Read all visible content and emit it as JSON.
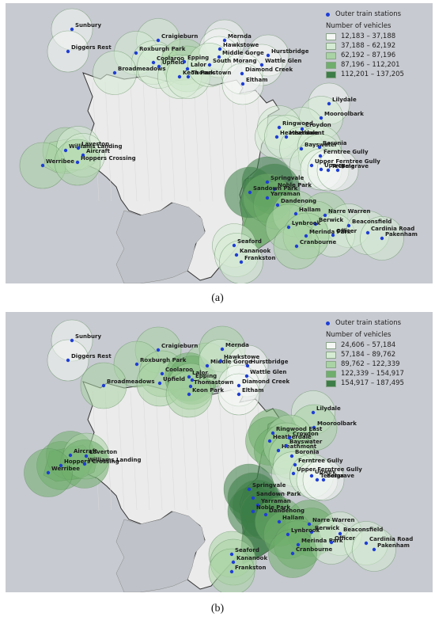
{
  "captions": {
    "a": "(a)",
    "b": "(b)"
  },
  "legend": {
    "stations_label": "Outer train stations",
    "title": "Number of vehicles",
    "station_color": "#1f3ed6"
  },
  "panels": [
    {
      "id": "a",
      "classes": [
        {
          "label": "12,183 – 37,188",
          "color": "#f4f7f4"
        },
        {
          "label": "37,188 – 62,192",
          "color": "#d6ebd3"
        },
        {
          "label": "62,192 – 87,196",
          "color": "#a9d3a4"
        },
        {
          "label": "87,196 – 112,201",
          "color": "#6fae6c"
        },
        {
          "label": "112,201 – 137,205",
          "color": "#3d7d47"
        }
      ]
    },
    {
      "id": "b",
      "classes": [
        {
          "label": "24,606 – 57,184",
          "color": "#f4f7f4"
        },
        {
          "label": "57,184 – 89,762",
          "color": "#d6ebd3"
        },
        {
          "label": "89,762 – 122,339",
          "color": "#a9d3a4"
        },
        {
          "label": "122,339 – 154,917",
          "color": "#6fae6c"
        },
        {
          "label": "154,917 – 187,495",
          "color": "#3d7d47"
        }
      ]
    }
  ],
  "stations_a": [
    {
      "name": "Sunbury",
      "cls": 0
    },
    {
      "name": "Diggers Rest",
      "cls": 0
    },
    {
      "name": "Craigieburn",
      "cls": 1
    },
    {
      "name": "Roxburgh Park",
      "cls": 1
    },
    {
      "name": "Coolaroo",
      "cls": 1
    },
    {
      "name": "Broadmeadows",
      "cls": 1
    },
    {
      "name": "Upfield",
      "cls": 1
    },
    {
      "name": "Epping",
      "cls": 2
    },
    {
      "name": "Lalor",
      "cls": 2
    },
    {
      "name": "Keon Park",
      "cls": 1
    },
    {
      "name": "Thomastown",
      "cls": 1
    },
    {
      "name": "Mernda",
      "cls": 0
    },
    {
      "name": "Hawkstowe",
      "cls": 0
    },
    {
      "name": "Middle Gorge",
      "cls": 0
    },
    {
      "name": "South Morang",
      "cls": 1
    },
    {
      "name": "Hurstbridge",
      "cls": 0
    },
    {
      "name": "Wattle Glen",
      "cls": 0
    },
    {
      "name": "Diamond Creek",
      "cls": 0
    },
    {
      "name": "Eltham",
      "cls": 0
    },
    {
      "name": "Lilydale",
      "cls": 0
    },
    {
      "name": "Mooroolbark",
      "cls": 1
    },
    {
      "name": "Croydon",
      "cls": 1
    },
    {
      "name": "Ringwood",
      "cls": 1
    },
    {
      "name": "Heatherdale",
      "cls": 1
    },
    {
      "name": "Heathmont",
      "cls": 1
    },
    {
      "name": "Bayswater",
      "cls": 1
    },
    {
      "name": "Boronia",
      "cls": 1
    },
    {
      "name": "Ferntree Gully",
      "cls": 1
    },
    {
      "name": "Upper Ferntree Gully",
      "cls": 1
    },
    {
      "name": "Upwey",
      "cls": 0
    },
    {
      "name": "Tecoma",
      "cls": 0
    },
    {
      "name": "Belgrave",
      "cls": 0
    },
    {
      "name": "Williams Landing",
      "cls": 2
    },
    {
      "name": "Laverton",
      "cls": 1
    },
    {
      "name": "Aircraft",
      "cls": 1
    },
    {
      "name": "Werribee",
      "cls": 2
    },
    {
      "name": "Hoppers Crossing",
      "cls": 2
    },
    {
      "name": "Springvale",
      "cls": 4
    },
    {
      "name": "Noble Park",
      "cls": 4
    },
    {
      "name": "Sandown Park",
      "cls": 4
    },
    {
      "name": "Yarraman",
      "cls": 3
    },
    {
      "name": "Dandenong",
      "cls": 3
    },
    {
      "name": "Hallam",
      "cls": 2
    },
    {
      "name": "Narre Warren",
      "cls": 2
    },
    {
      "name": "Berwick",
      "cls": 2
    },
    {
      "name": "Beaconsfield",
      "cls": 1
    },
    {
      "name": "Lynbrook",
      "cls": 2
    },
    {
      "name": "Officer",
      "cls": 1
    },
    {
      "name": "Merinda Park",
      "cls": 2
    },
    {
      "name": "Cardinia Road",
      "cls": 1
    },
    {
      "name": "Cranbourne",
      "cls": 2
    },
    {
      "name": "Pakenham",
      "cls": 1
    },
    {
      "name": "Seaford",
      "cls": 1
    },
    {
      "name": "Kananook",
      "cls": 1
    },
    {
      "name": "Frankston",
      "cls": 1
    }
  ],
  "stations_b": [
    {
      "name": "Sunbury",
      "cls": 0
    },
    {
      "name": "Diggers Rest",
      "cls": 0
    },
    {
      "name": "Craigieburn",
      "cls": 2
    },
    {
      "name": "Roxburgh Park",
      "cls": 2
    },
    {
      "name": "Coolaroo",
      "cls": 2
    },
    {
      "name": "Broadmeadows",
      "cls": 2
    },
    {
      "name": "Upfield",
      "cls": 2
    },
    {
      "name": "Middle Gorge",
      "cls": 2
    },
    {
      "name": "Lalor",
      "cls": 3
    },
    {
      "name": "Epping",
      "cls": 3
    },
    {
      "name": "Thomastown",
      "cls": 2
    },
    {
      "name": "Keon Park",
      "cls": 2
    },
    {
      "name": "Mernda",
      "cls": 2
    },
    {
      "name": "Hawkstowe",
      "cls": 1
    },
    {
      "name": "Hurstbridge",
      "cls": 0
    },
    {
      "name": "Wattle Glen",
      "cls": 0
    },
    {
      "name": "Diamond Creek",
      "cls": 0
    },
    {
      "name": "Eltham",
      "cls": 0
    },
    {
      "name": "Lilydale",
      "cls": 1
    },
    {
      "name": "Mooroolbark",
      "cls": 2
    },
    {
      "name": "Ringwood East",
      "cls": 3
    },
    {
      "name": "Heatherdale",
      "cls": 3
    },
    {
      "name": "Croydon",
      "cls": 2
    },
    {
      "name": "Heathmont",
      "cls": 3
    },
    {
      "name": "Bayswater",
      "cls": 2
    },
    {
      "name": "Boronia",
      "cls": 2
    },
    {
      "name": "Ferntree Gully",
      "cls": 1
    },
    {
      "name": "Upper Ferntree Gully",
      "cls": 1
    },
    {
      "name": "Upwey",
      "cls": 1
    },
    {
      "name": "Tecoma",
      "cls": 0
    },
    {
      "name": "Belgrave",
      "cls": 0
    },
    {
      "name": "Hoppers Crossing",
      "cls": 3
    },
    {
      "name": "Aircraft",
      "cls": 3
    },
    {
      "name": "Laverton",
      "cls": 2
    },
    {
      "name": "Williams Landing",
      "cls": 3
    },
    {
      "name": "Werribee",
      "cls": 3
    },
    {
      "name": "Springvale",
      "cls": 4
    },
    {
      "name": "Sandown Park",
      "cls": 4
    },
    {
      "name": "Yarraman",
      "cls": 4
    },
    {
      "name": "Noble Park",
      "cls": 4
    },
    {
      "name": "Dandenong",
      "cls": 4
    },
    {
      "name": "Hallam",
      "cls": 3
    },
    {
      "name": "Narre Warren",
      "cls": 3
    },
    {
      "name": "Berwick",
      "cls": 3
    },
    {
      "name": "Lynbrook",
      "cls": 3
    },
    {
      "name": "Beaconsfield",
      "cls": 1
    },
    {
      "name": "Merinda Park",
      "cls": 3
    },
    {
      "name": "Officer",
      "cls": 1
    },
    {
      "name": "Cranbourne",
      "cls": 3
    },
    {
      "name": "Cardinia Road",
      "cls": 1
    },
    {
      "name": "Pakenham",
      "cls": 1
    },
    {
      "name": "Seaford",
      "cls": 2
    },
    {
      "name": "Kananook",
      "cls": 2
    },
    {
      "name": "Frankston",
      "cls": 2
    }
  ]
}
